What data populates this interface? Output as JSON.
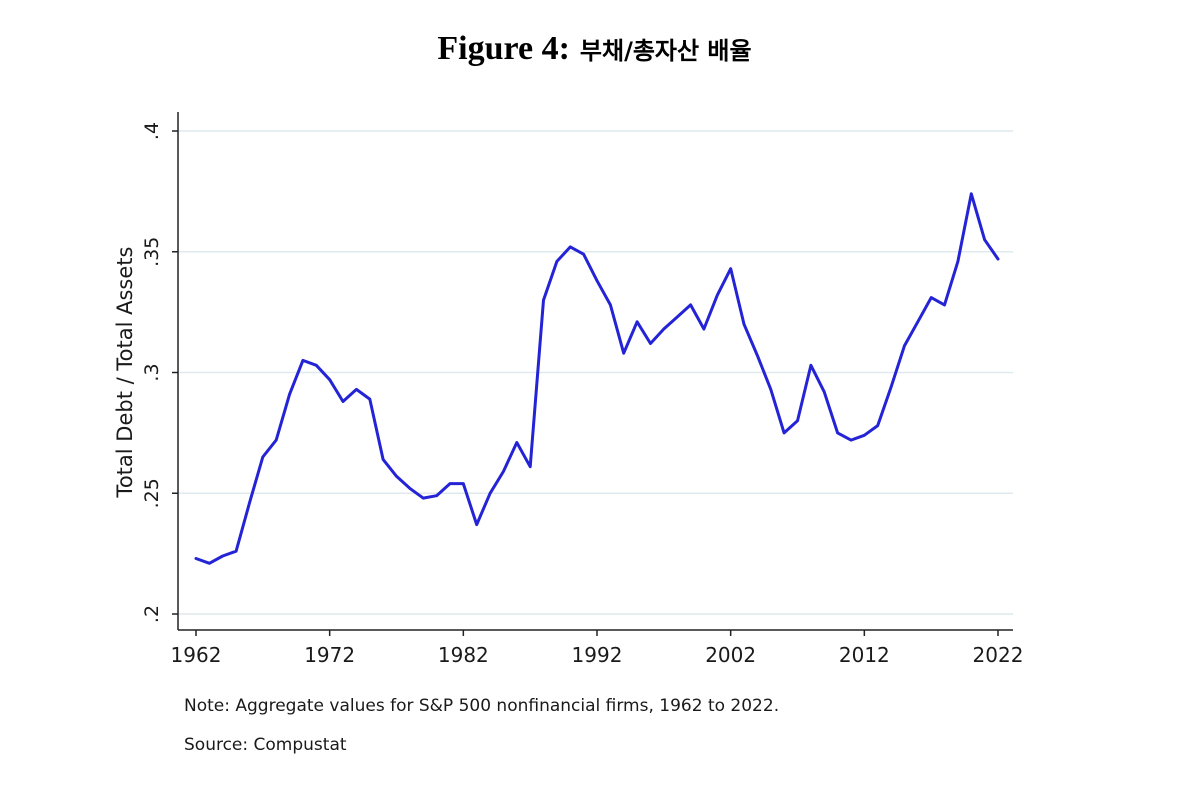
{
  "figure": {
    "label": "Figure 4:",
    "korean_title": "부채/총자산 배율"
  },
  "notes": {
    "note": "Note: Aggregate values for S&P 500 nonfinancial firms, 1962 to 2022.",
    "source": "Source: Compustat"
  },
  "colors": {
    "line": "#2424d6",
    "grid": "#dfe9ee",
    "axis": "#222222"
  },
  "chart_data": {
    "type": "line",
    "title": "부채/총자산 배율",
    "xlabel": "",
    "ylabel": "Total Debt / Total Assets",
    "xlim": [
      1962,
      2022
    ],
    "ylim": [
      0.2,
      0.4
    ],
    "xticks": [
      1962,
      1972,
      1982,
      1992,
      2002,
      2012,
      2022
    ],
    "xtick_labels": [
      "1962",
      "1972",
      "1982",
      "1992",
      "2002",
      "2012",
      "2022"
    ],
    "yticks": [
      0.2,
      0.25,
      0.3,
      0.35,
      0.4
    ],
    "ytick_labels": [
      ".2",
      ".25",
      ".3",
      ".35",
      ".4"
    ],
    "grid": true,
    "series": [
      {
        "name": "Total Debt / Total Assets",
        "x": [
          1962,
          1963,
          1964,
          1965,
          1966,
          1967,
          1968,
          1969,
          1970,
          1971,
          1972,
          1973,
          1974,
          1975,
          1976,
          1977,
          1978,
          1979,
          1980,
          1981,
          1982,
          1983,
          1984,
          1985,
          1986,
          1987,
          1988,
          1989,
          1990,
          1991,
          1992,
          1993,
          1994,
          1995,
          1996,
          1997,
          1998,
          1999,
          2000,
          2001,
          2002,
          2003,
          2004,
          2005,
          2006,
          2007,
          2008,
          2009,
          2010,
          2011,
          2012,
          2013,
          2014,
          2015,
          2016,
          2017,
          2018,
          2019,
          2020,
          2021,
          2022
        ],
        "values": [
          0.223,
          0.221,
          0.224,
          0.226,
          0.246,
          0.265,
          0.272,
          0.291,
          0.305,
          0.303,
          0.297,
          0.288,
          0.293,
          0.289,
          0.264,
          0.257,
          0.252,
          0.248,
          0.249,
          0.254,
          0.254,
          0.237,
          0.25,
          0.259,
          0.271,
          0.261,
          0.33,
          0.346,
          0.352,
          0.349,
          0.338,
          0.328,
          0.308,
          0.321,
          0.312,
          0.318,
          0.323,
          0.328,
          0.318,
          0.332,
          0.343,
          0.32,
          0.307,
          0.293,
          0.275,
          0.28,
          0.303,
          0.292,
          0.275,
          0.272,
          0.274,
          0.278,
          0.294,
          0.311,
          0.321,
          0.331,
          0.328,
          0.346,
          0.374,
          0.355,
          0.347
        ]
      }
    ]
  }
}
